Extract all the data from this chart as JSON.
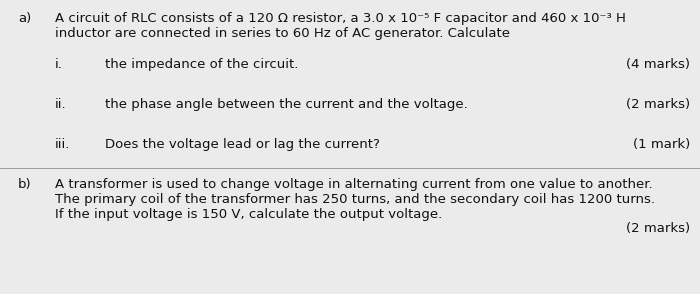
{
  "background_color": "#ebebeb",
  "text_color": "#111111",
  "figsize": [
    7.0,
    2.94
  ],
  "dpi": 100,
  "font_size": 9.5,
  "a_label": "a)",
  "a_line1": "A circuit of RLC consists of a 120 Ω resistor, a 3.0 x 10⁻⁵ F capacitor and 460 x 10⁻³ H",
  "a_line2": "inductor are connected in series to 60 Hz of AC generator. Calculate",
  "i_label": "i.",
  "i_text": "the impedance of the circuit.",
  "i_marks": "(4 marks)",
  "ii_label": "ii.",
  "ii_text": "the phase angle between the current and the voltage.",
  "ii_marks": "(2 marks)",
  "iii_label": "iii.",
  "iii_text": "Does the voltage lead or lag the current?",
  "iii_marks": "(1 mark)",
  "b_label": "b)",
  "b_line1": "A transformer is used to change voltage in alternating current from one value to another.",
  "b_line2": "The primary coil of the transformer has 250 turns, and the secondary coil has 1200 turns.",
  "b_line3": "If the input voltage is 150 V, calculate the output voltage.",
  "b_marks": "(2 marks)",
  "divider_color": "#999999",
  "divider_lw": 0.7
}
